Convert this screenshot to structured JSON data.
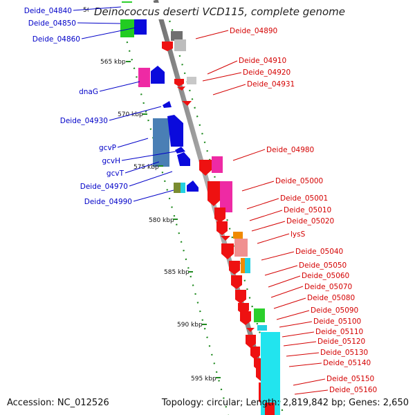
{
  "title": "Deinococcus deserti VCD115, complete genome",
  "footer": {
    "accession": "Accession: NC_012526",
    "topology": "Topology: circular; Length: 2,819,842 bp; Genes: 2,650"
  },
  "colors": {
    "forward_label": "#0000c8",
    "reverse_label": "#d40000",
    "backbone": "#8a8a8a",
    "ticks": "#1f8a1f"
  },
  "scale_ticks": [
    "560 kbp",
    "565 kbp",
    "570 kbp",
    "575 kbp",
    "580 kbp",
    "585 kbp",
    "590 kbp",
    "595 kbp"
  ],
  "left_labels": [
    "Deide_04840",
    "Deide_04850",
    "Deide_04860",
    "dnaG",
    "Deide_04930",
    "gcvP",
    "gcvH",
    "gcvT",
    "Deide_04970",
    "Deide_04990"
  ],
  "right_labels": [
    "Deide_04890",
    "Deide_04910",
    "Deide_04920",
    "Deide_04931",
    "Deide_04980",
    "Deide_05000",
    "Deide_05001",
    "Deide_05010",
    "Deide_05020",
    "lysS",
    "Deide_05040",
    "Deide_05050",
    "Deide_05060",
    "Deide_05070",
    "Deide_05080",
    "Deide_05090",
    "Deide_05100",
    "Deide_05110",
    "Deide_05120",
    "Deide_05130",
    "Deide_05140",
    "Deide_05150",
    "Deide_05160"
  ]
}
